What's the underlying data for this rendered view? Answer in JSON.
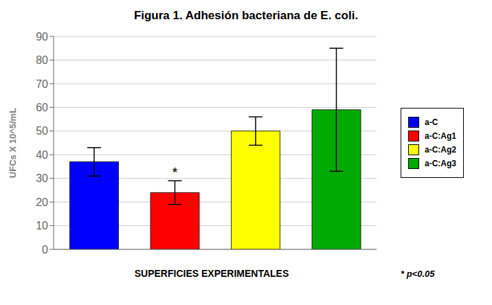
{
  "chart_data": {
    "type": "bar",
    "title": "Figura 1. Adhesión bacteriana de E. coli.",
    "categories": [
      "a-C",
      "a-C:Ag1",
      "a-C:Ag2",
      "a-C:Ag3"
    ],
    "values": [
      37,
      24,
      50,
      59
    ],
    "errors": [
      6,
      5,
      6,
      26
    ],
    "colors": [
      "#0000FF",
      "#FF0000",
      "#FFFF00",
      "#00AA00"
    ],
    "ylabel": "UFCs X 10^5/mL",
    "xlabel": "SUPERFICIES EXPERIMENTALES",
    "ylim": [
      0,
      90
    ],
    "yticks": [
      0,
      10,
      20,
      30,
      40,
      50,
      60,
      70,
      80,
      90
    ],
    "grid": true,
    "legend": "right",
    "tick_labels": "y",
    "annotations": [
      {
        "text": "*",
        "category": "a-C:Ag1"
      },
      {
        "text": "* p<0.05"
      }
    ]
  }
}
